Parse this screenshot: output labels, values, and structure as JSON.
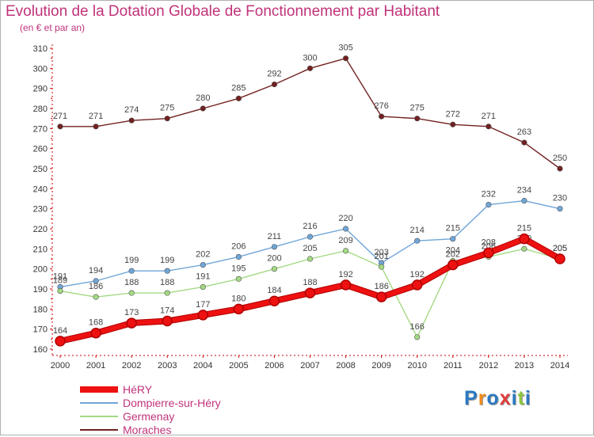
{
  "header": {
    "title": "Evolution de la Dotation Globale de Fonctionnement par Habitant",
    "subtitle": "(en € et par an)"
  },
  "logo": {
    "text": "Proxiti",
    "colors": [
      "#2b79c2",
      "#f28c1c",
      "#2b79c2",
      "#e23b3b",
      "#2b79c2",
      "#8dc63f",
      "#2b79c2"
    ]
  },
  "chart_data": {
    "type": "line",
    "title": "Evolution de la Dotation Globale de Fonctionnement par Habitant",
    "subtitle": "(en € et par an)",
    "xlabel": "",
    "ylabel": "",
    "ylim": [
      160,
      310
    ],
    "yticks": [
      160,
      170,
      180,
      190,
      200,
      210,
      220,
      230,
      240,
      250,
      260,
      270,
      280,
      290,
      300,
      310
    ],
    "grid": false,
    "legend": "bottom-left",
    "x": [
      "2000",
      "2001",
      "2002",
      "2003",
      "2004",
      "2005",
      "2006",
      "2007",
      "2008",
      "2009",
      "2010",
      "2011",
      "2012",
      "2013",
      "2014"
    ],
    "series": [
      {
        "name": "Moraches",
        "color": "#722020",
        "values": [
          271,
          271,
          274,
          275,
          280,
          285,
          292,
          300,
          305,
          276,
          275,
          272,
          271,
          263,
          250
        ]
      },
      {
        "name": "Dompierre-sur-Héry",
        "color": "#6fa6d8",
        "values": [
          191,
          194,
          199,
          199,
          202,
          206,
          211,
          216,
          220,
          203,
          214,
          215,
          232,
          234,
          230
        ]
      },
      {
        "name": "Germenay",
        "color": "#a4d984",
        "values": [
          189,
          186,
          188,
          188,
          191,
          195,
          200,
          205,
          209,
          201,
          166,
          204,
          206,
          210,
          205
        ]
      },
      {
        "name": "HéRY",
        "color": "#ee1111",
        "values": [
          164,
          168,
          173,
          174,
          177,
          180,
          184,
          188,
          192,
          186,
          192,
          202,
          208,
          215,
          205
        ]
      }
    ],
    "legend_order": [
      "HéRY",
      "Dompierre-sur-Héry",
      "Germenay",
      "Moraches"
    ]
  }
}
